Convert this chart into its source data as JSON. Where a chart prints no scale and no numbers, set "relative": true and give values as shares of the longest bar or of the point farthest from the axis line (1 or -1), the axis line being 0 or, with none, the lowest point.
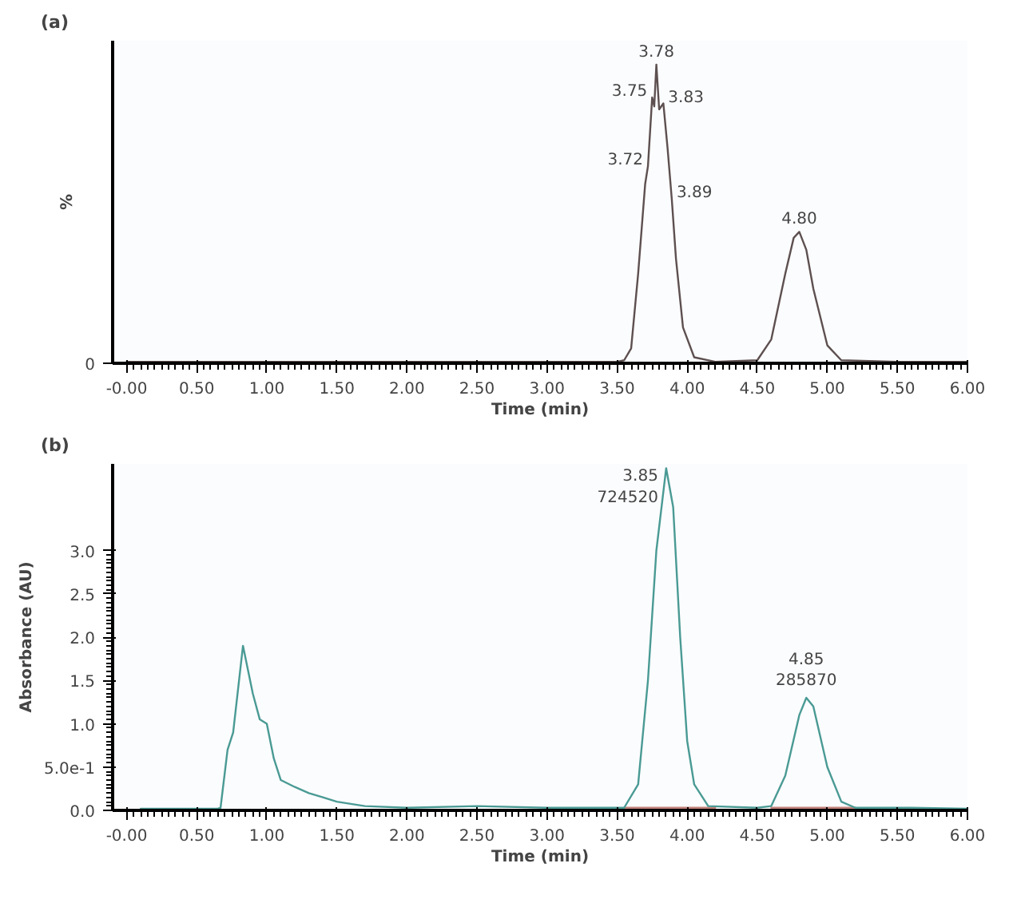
{
  "chart_data": [
    {
      "type": "line",
      "title": "(a)",
      "xlabel": "Time (min)",
      "ylabel": "%",
      "relative": true,
      "grid": false,
      "marker": "none",
      "line_style": "solid",
      "xlim": [
        -0.1,
        6.0
      ],
      "xticks": [
        {
          "value": 0,
          "label": "-0.00"
        },
        {
          "value": 0.5,
          "label": "0.50"
        },
        {
          "value": 1,
          "label": "1.00"
        },
        {
          "value": 1.5,
          "label": "1.50"
        },
        {
          "value": 2,
          "label": "2.00"
        },
        {
          "value": 2.5,
          "label": "2.50"
        },
        {
          "value": 3,
          "label": "3.00"
        },
        {
          "value": 3.5,
          "label": "3.50"
        },
        {
          "value": 4,
          "label": "4.00"
        },
        {
          "value": 4.5,
          "label": "4.50"
        },
        {
          "value": 5,
          "label": "5.00"
        },
        {
          "value": 5.5,
          "label": "5.50"
        },
        {
          "value": 6,
          "label": "6.00"
        }
      ],
      "series": [
        {
          "color": "#5e5050",
          "x": [
            0,
            1,
            2,
            3,
            3.5,
            3.55,
            3.6,
            3.65,
            3.7,
            3.72,
            3.75,
            3.765,
            3.78,
            3.8,
            3.83,
            3.86,
            3.89,
            3.92,
            3.97,
            4.05,
            4.2,
            4.5,
            4.6,
            4.7,
            4.76,
            4.8,
            4.85,
            4.9,
            5.0,
            5.1,
            5.5,
            6.0
          ],
          "values": [
            0.005,
            0.005,
            0.005,
            0.005,
            0.005,
            0.01,
            0.05,
            0.3,
            0.6,
            0.66,
            0.89,
            0.86,
            1.0,
            0.85,
            0.87,
            0.72,
            0.55,
            0.35,
            0.12,
            0.02,
            0.005,
            0.01,
            0.08,
            0.3,
            0.42,
            0.44,
            0.38,
            0.25,
            0.06,
            0.01,
            0.005,
            0.005
          ]
        }
      ],
      "annotations": [
        "0",
        {
          "text": "3.78",
          "x": 3.78,
          "y": 1.0
        },
        {
          "text": "3.75",
          "x": 3.75,
          "y": 0.89
        },
        {
          "text": "3.83",
          "x": 3.83,
          "y": 0.87
        },
        {
          "text": "3.72",
          "x": 3.72,
          "y": 0.66
        },
        {
          "text": "3.89",
          "x": 3.89,
          "y": 0.55
        },
        {
          "text": "4.80",
          "x": 4.8,
          "y": 0.44
        }
      ]
    },
    {
      "type": "line",
      "title": "(b)",
      "xlabel": "Time (min)",
      "ylabel": "Absorbance (AU)",
      "grid": false,
      "marker": "none",
      "line_style": "solid",
      "xlim": [
        -0.1,
        6.0
      ],
      "xticks": [
        {
          "value": 0,
          "label": "-0.00"
        },
        {
          "value": 0.5,
          "label": "0.50"
        },
        {
          "value": 1,
          "label": "1.00"
        },
        {
          "value": 1.5,
          "label": "1.50"
        },
        {
          "value": 2,
          "label": "2.00"
        },
        {
          "value": 2.5,
          "label": "2.50"
        },
        {
          "value": 3,
          "label": "3.00"
        },
        {
          "value": 3.5,
          "label": "3.50"
        },
        {
          "value": 4,
          "label": "4.00"
        },
        {
          "value": 4.5,
          "label": "4.50"
        },
        {
          "value": 5,
          "label": "5.00"
        },
        {
          "value": 5.5,
          "label": "5.50"
        },
        {
          "value": 6,
          "label": "6.00"
        }
      ],
      "ylim": [
        0,
        4.0
      ],
      "yticks": [
        {
          "value": 0,
          "label": "0.0"
        },
        {
          "value": 0.5,
          "label": "5.0e-1"
        },
        {
          "value": 1,
          "label": "1.0"
        },
        {
          "value": 1.5,
          "label": "1.5"
        },
        {
          "value": 2,
          "label": "2.0"
        },
        {
          "value": 2.5,
          "label": "2.5"
        },
        {
          "value": 3,
          "label": "3.0"
        }
      ],
      "series": [
        {
          "color": "#c08078",
          "x": [
            3.55,
            4.2,
            4.25,
            4.6,
            5.2
          ],
          "values": [
            0.03,
            0.03,
            null,
            0.03,
            0.03
          ]
        },
        {
          "color": "#4a9a94",
          "x": [
            0.1,
            0.4,
            0.65,
            0.67,
            0.72,
            0.76,
            0.83,
            0.9,
            0.95,
            1.0,
            1.05,
            1.1,
            1.2,
            1.3,
            1.4,
            1.5,
            1.7,
            2.0,
            2.5,
            3.0,
            3.55,
            3.65,
            3.72,
            3.78,
            3.85,
            3.9,
            3.95,
            4.0,
            4.05,
            4.15,
            4.5,
            4.6,
            4.7,
            4.8,
            4.85,
            4.9,
            5.0,
            5.1,
            5.2,
            5.6,
            6.0
          ],
          "values": [
            0.02,
            0.02,
            0.02,
            0.03,
            0.7,
            0.9,
            1.9,
            1.35,
            1.05,
            1.0,
            0.6,
            0.35,
            0.27,
            0.2,
            0.15,
            0.1,
            0.05,
            0.03,
            0.05,
            0.03,
            0.03,
            0.3,
            1.5,
            3.0,
            3.95,
            3.5,
            2.0,
            0.8,
            0.3,
            0.05,
            0.03,
            0.05,
            0.4,
            1.1,
            1.3,
            1.2,
            0.5,
            0.1,
            0.03,
            0.03,
            0.02
          ]
        }
      ],
      "annotations": [
        {
          "text": "3.85\n724520",
          "x": 3.85,
          "y": 3.95
        },
        {
          "text": "4.85\n285870",
          "x": 4.85,
          "y": 1.3
        }
      ]
    }
  ]
}
